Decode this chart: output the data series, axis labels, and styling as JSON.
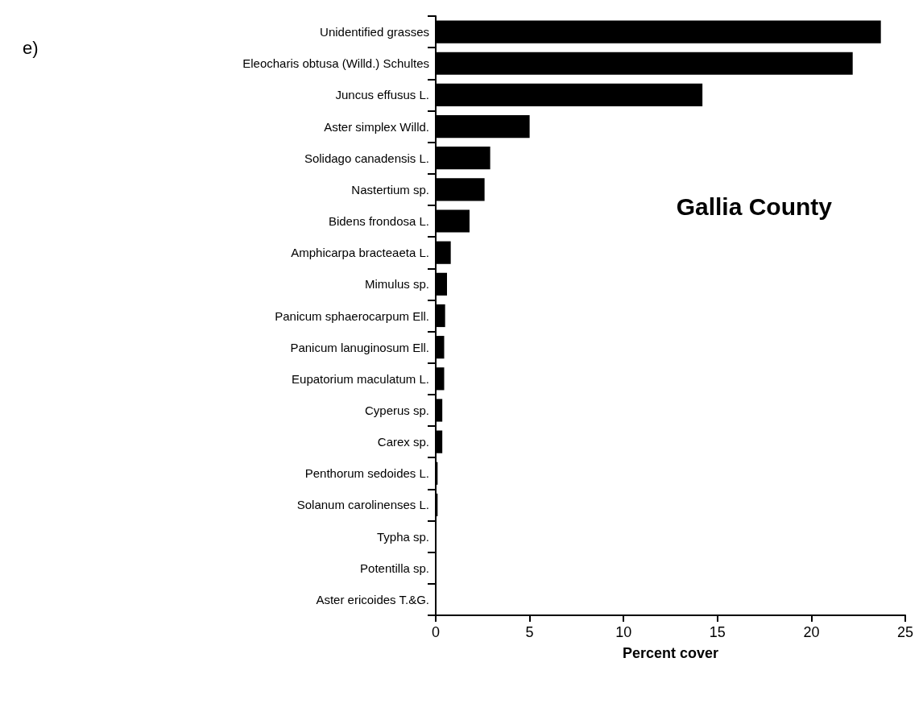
{
  "chart_data": {
    "type": "bar",
    "orientation": "horizontal",
    "title": "Gallia County",
    "xlabel": "Percent cover",
    "annotations": [
      "e)"
    ],
    "categories": [
      "Unidentified grasses",
      "Eleocharis obtusa (Willd.) Schultes",
      "Juncus effusus L.",
      "Aster simplex Willd.",
      "Solidago canadensis L.",
      "Nastertium sp.",
      "Bidens frondosa L.",
      "Amphicarpa bracteaeta L.",
      "Mimulus sp.",
      "Panicum sphaerocarpum Ell.",
      "Panicum lanuginosum Ell.",
      "Eupatorium maculatum L.",
      "Cyperus sp.",
      "Carex sp.",
      "Penthorum sedoides L.",
      "Solanum carolinenses L.",
      "Typha sp.",
      "Potentilla sp.",
      "Aster ericoides T.&G."
    ],
    "values": [
      23.7,
      22.2,
      14.2,
      5.0,
      2.9,
      2.6,
      1.8,
      0.8,
      0.6,
      0.5,
      0.45,
      0.45,
      0.35,
      0.35,
      0.1,
      0.1,
      0,
      0,
      0
    ],
    "color": "#000000",
    "xlim": [
      0,
      25
    ],
    "xticks": [
      0,
      5,
      10,
      15,
      20,
      25
    ],
    "grid": false
  }
}
